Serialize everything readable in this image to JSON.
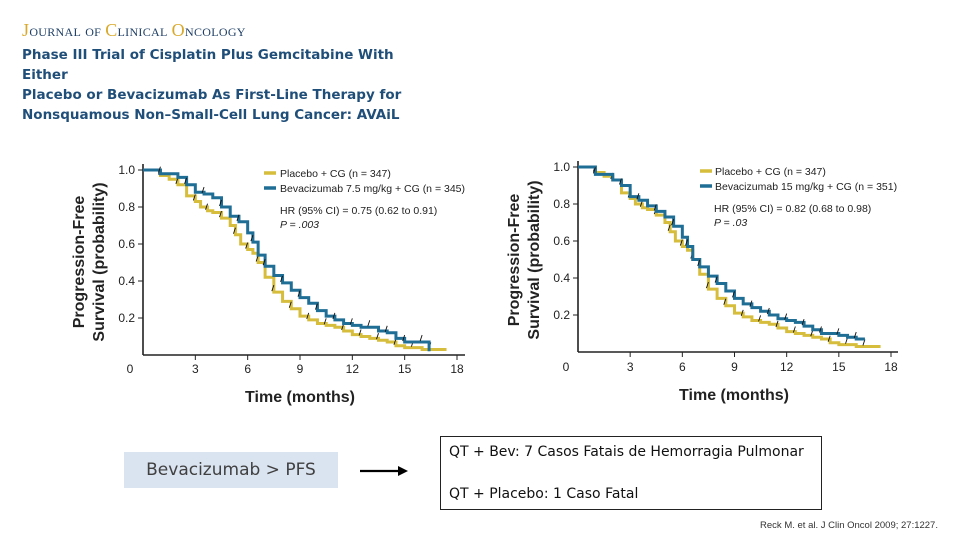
{
  "header": {
    "journal": {
      "j": "J",
      "ournal": "OURNAL",
      "of": "OF",
      "c": "C",
      "linical": "LINICAL",
      "o": "O",
      "ncology": "NCOLOGY"
    },
    "title_lines": [
      "Phase III Trial of Cisplatin Plus Gemcitabine With Either",
      "Placebo or Bevacizumab As First-Line Therapy for",
      "Nonsquamous Non–Small-Cell Lung Cancer: AVAiL"
    ]
  },
  "colors": {
    "placebo": "#d6bd3c",
    "bevacizumab": "#1f6e96",
    "title": "#1f4e79",
    "journal_accent": "#d9a92b"
  },
  "chart_data": [
    {
      "type": "line",
      "subtype": "kaplan-meier-step",
      "title": "",
      "xlabel": "Time (months)",
      "ylabel_lines": [
        "Progression-Free",
        "Survival (probability)"
      ],
      "xlim": [
        0,
        18
      ],
      "ylim": [
        0,
        1.0
      ],
      "xticks": [
        "0",
        "3",
        "6",
        "9",
        "12",
        "15",
        "18"
      ],
      "yticks": [
        "0.2",
        "0.4",
        "0.6",
        "0.8",
        "1.0"
      ],
      "legend": "top-right",
      "annotation": {
        "hr": "HR (95% CI) = 0.75 (0.62 to 0.91)",
        "p": "P = .003"
      },
      "series": [
        {
          "name": "Placebo + CG (n = 347)",
          "color_key": "placebo",
          "x": [
            0,
            1,
            1.5,
            2,
            2.5,
            3,
            3.3,
            3.7,
            4,
            4.5,
            5,
            5.3,
            5.6,
            6,
            6.3,
            6.6,
            7,
            7.5,
            8,
            8.5,
            9,
            9.5,
            10,
            10.5,
            11,
            11.5,
            12,
            12.5,
            13,
            13.5,
            14,
            14.5,
            15,
            15.5,
            16,
            16.5,
            17.4
          ],
          "y": [
            1.0,
            0.97,
            0.95,
            0.92,
            0.86,
            0.83,
            0.8,
            0.78,
            0.77,
            0.74,
            0.7,
            0.65,
            0.6,
            0.57,
            0.55,
            0.5,
            0.42,
            0.34,
            0.29,
            0.25,
            0.21,
            0.19,
            0.17,
            0.16,
            0.15,
            0.13,
            0.11,
            0.1,
            0.09,
            0.08,
            0.07,
            0.05,
            0.04,
            0.04,
            0.03,
            0.03,
            0.03
          ]
        },
        {
          "name": "Bevacizumab 7.5 mg/kg + CG (n = 345)",
          "color_key": "bevacizumab",
          "x": [
            0,
            1,
            2,
            2.5,
            3,
            3.5,
            4,
            4.5,
            5,
            5.5,
            6,
            6.3,
            6.6,
            7,
            7.5,
            8,
            8.5,
            9,
            9.5,
            10,
            10.5,
            11,
            11.5,
            12,
            12.5,
            13,
            13.5,
            14,
            14.5,
            15,
            15.5,
            16,
            16.4
          ],
          "y": [
            1.0,
            0.98,
            0.96,
            0.92,
            0.88,
            0.87,
            0.85,
            0.8,
            0.75,
            0.72,
            0.66,
            0.61,
            0.54,
            0.48,
            0.43,
            0.39,
            0.35,
            0.31,
            0.28,
            0.24,
            0.21,
            0.19,
            0.17,
            0.16,
            0.15,
            0.15,
            0.13,
            0.12,
            0.09,
            0.07,
            0.07,
            0.07,
            0.02
          ]
        }
      ]
    },
    {
      "type": "line",
      "subtype": "kaplan-meier-step",
      "title": "",
      "xlabel": "Time (months)",
      "ylabel_lines": [
        "Progression-Free",
        "Survival (probability)"
      ],
      "xlim": [
        0,
        18
      ],
      "ylim": [
        0,
        1.0
      ],
      "xticks": [
        "0",
        "3",
        "6",
        "9",
        "12",
        "15",
        "18"
      ],
      "yticks": [
        "0.2",
        "0.4",
        "0.6",
        "0.8",
        "1.0"
      ],
      "legend": "top-right",
      "annotation": {
        "hr": "HR (95% CI) = 0.82 (0.68 to 0.98)",
        "p": "P = .03"
      },
      "series": [
        {
          "name": "Placebo + CG (n = 347)",
          "color_key": "placebo",
          "x": [
            0,
            1,
            1.5,
            2,
            2.5,
            3,
            3.3,
            3.7,
            4,
            4.5,
            5,
            5.3,
            5.6,
            6,
            6.3,
            6.6,
            7,
            7.5,
            8,
            8.5,
            9,
            9.5,
            10,
            10.5,
            11,
            11.5,
            12,
            12.5,
            13,
            13.5,
            14,
            14.5,
            15,
            15.5,
            16,
            16.5,
            17.4
          ],
          "y": [
            1.0,
            0.97,
            0.95,
            0.93,
            0.86,
            0.83,
            0.8,
            0.78,
            0.77,
            0.74,
            0.7,
            0.65,
            0.6,
            0.57,
            0.55,
            0.5,
            0.42,
            0.34,
            0.29,
            0.25,
            0.21,
            0.19,
            0.17,
            0.16,
            0.15,
            0.13,
            0.11,
            0.1,
            0.09,
            0.08,
            0.07,
            0.05,
            0.04,
            0.04,
            0.03,
            0.03,
            0.03
          ]
        },
        {
          "name": "Bevacizumab 15 mg/kg + CG (n = 351)",
          "color_key": "bevacizumab",
          "x": [
            0,
            1,
            2,
            2.5,
            3,
            3.5,
            4,
            4.5,
            5,
            5.5,
            6,
            6.3,
            6.6,
            7,
            7.5,
            8,
            8.5,
            9,
            9.5,
            10,
            10.5,
            11,
            11.5,
            12,
            12.5,
            13,
            13.5,
            14,
            14.5,
            15,
            15.5,
            16,
            16.5
          ],
          "y": [
            1.0,
            0.96,
            0.93,
            0.9,
            0.84,
            0.82,
            0.79,
            0.76,
            0.73,
            0.68,
            0.62,
            0.57,
            0.5,
            0.46,
            0.41,
            0.37,
            0.33,
            0.29,
            0.26,
            0.24,
            0.22,
            0.2,
            0.18,
            0.17,
            0.16,
            0.14,
            0.12,
            0.1,
            0.1,
            0.09,
            0.08,
            0.07,
            0.07
          ]
        }
      ]
    }
  ],
  "conclusion": {
    "pfs_label": "Bevacizumab > PFS",
    "events": [
      "QT + Bev: 7 Casos Fatais de Hemorragia Pulmonar",
      "QT + Placebo: 1 Caso Fatal"
    ]
  },
  "reference": "Reck M.  et al. J Clin Oncol 2009; 27:1227."
}
